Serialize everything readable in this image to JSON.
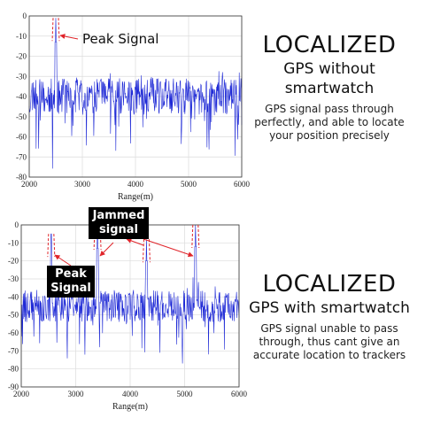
{
  "chart_data": [
    {
      "type": "line",
      "xlabel": "Range(m)",
      "ylabel": "",
      "xlim": [
        2000,
        6000
      ],
      "ylim": [
        -80,
        0
      ],
      "xticks": [
        2000,
        3000,
        4000,
        5000,
        6000
      ],
      "yticks": [
        0,
        -10,
        -20,
        -30,
        -40,
        -50,
        -60,
        -70,
        -80
      ],
      "grid": true,
      "noise_floor": -40,
      "peaks": [
        {
          "x": 2500,
          "y": -1,
          "annotation": "Peak Signal"
        }
      ]
    },
    {
      "type": "line",
      "xlabel": "Range(m)",
      "ylabel": "",
      "xlim": [
        2000,
        6000
      ],
      "ylim": [
        -90,
        0
      ],
      "xticks": [
        2000,
        3000,
        4000,
        5000,
        6000
      ],
      "yticks": [
        0,
        -10,
        -20,
        -30,
        -40,
        -50,
        -60,
        -70,
        -80,
        -90
      ],
      "grid": true,
      "noise_floor": -45,
      "peaks": [
        {
          "x": 2550,
          "y": -5,
          "annotation": "Peak Signal"
        },
        {
          "x": 3400,
          "y": -1,
          "annotation": "Jammed signal"
        },
        {
          "x": 4300,
          "y": -8,
          "annotation": "Jammed signal"
        },
        {
          "x": 5200,
          "y": 0,
          "annotation": "Jammed signal"
        }
      ]
    }
  ],
  "annotations": {
    "top_peak": "Peak Signal",
    "jammed_line1": "Jammed",
    "jammed_line2": "signal",
    "peak_line1": "Peak",
    "peak_line2": "Signal"
  },
  "panels": [
    {
      "heading": "LOCALIZED",
      "sub_line1": "GPS without",
      "sub_line2": "smartwatch",
      "description": "GPS signal pass through perfectly, and able to locate your position precisely"
    },
    {
      "heading": "LOCALIZED",
      "sub_line1": "GPS with smartwatch",
      "sub_line2": "",
      "description": "GPS signal unable to pass through, thus cant give an accurate location to trackers"
    }
  ],
  "colors": {
    "signal": "#1f2ad6",
    "annotation": "#e0242a",
    "grid": "#dcdcdc"
  }
}
